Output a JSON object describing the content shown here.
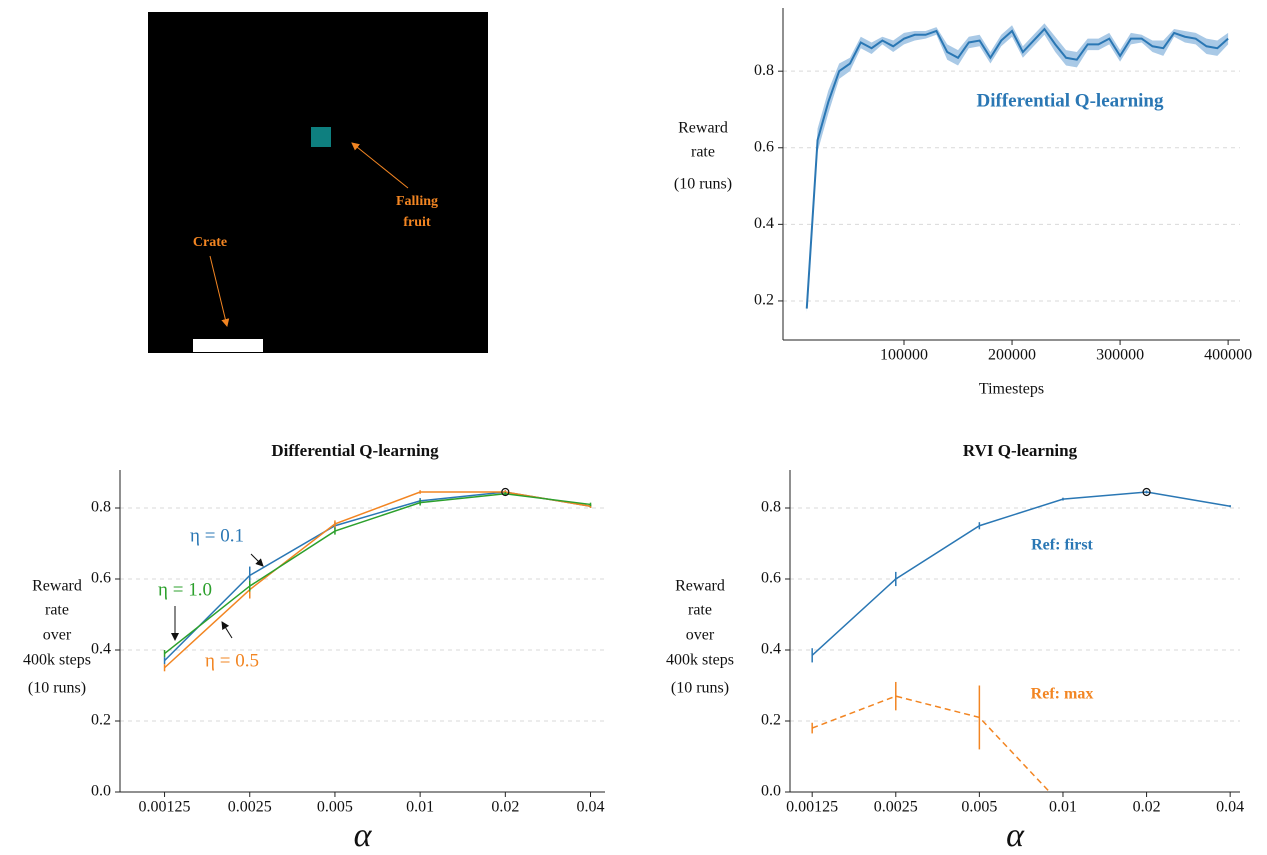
{
  "environment": {
    "fruit_label": [
      "Falling",
      "fruit"
    ],
    "crate_label": "Crate"
  },
  "chart_data": [
    {
      "type": "line",
      "xlabel": "Timesteps",
      "ylabel": [
        "Reward",
        "rate",
        "(10 runs)"
      ],
      "x": [
        10000,
        20000,
        30000,
        40000,
        50000,
        60000,
        70000,
        80000,
        90000,
        100000,
        110000,
        120000,
        130000,
        140000,
        150000,
        160000,
        170000,
        180000,
        190000,
        200000,
        210000,
        220000,
        230000,
        240000,
        250000,
        260000,
        270000,
        280000,
        290000,
        300000,
        310000,
        320000,
        330000,
        340000,
        350000,
        360000,
        370000,
        380000,
        390000,
        400000
      ],
      "series": [
        {
          "name": "Differential Q-learning",
          "color": "#2a77b4",
          "band_color": "#a9c9e6",
          "values": [
            0.18,
            0.62,
            0.72,
            0.8,
            0.82,
            0.875,
            0.86,
            0.88,
            0.865,
            0.885,
            0.895,
            0.895,
            0.905,
            0.85,
            0.835,
            0.875,
            0.88,
            0.835,
            0.88,
            0.905,
            0.85,
            0.88,
            0.91,
            0.87,
            0.835,
            0.83,
            0.87,
            0.87,
            0.885,
            0.84,
            0.885,
            0.885,
            0.865,
            0.86,
            0.9,
            0.89,
            0.885,
            0.865,
            0.86,
            0.885
          ],
          "lower": [
            0.17,
            0.59,
            0.69,
            0.78,
            0.8,
            0.86,
            0.845,
            0.87,
            0.85,
            0.87,
            0.88,
            0.885,
            0.895,
            0.83,
            0.815,
            0.86,
            0.865,
            0.82,
            0.865,
            0.89,
            0.835,
            0.865,
            0.895,
            0.85,
            0.815,
            0.81,
            0.855,
            0.855,
            0.87,
            0.825,
            0.87,
            0.875,
            0.85,
            0.84,
            0.89,
            0.875,
            0.87,
            0.845,
            0.84,
            0.87
          ],
          "upper": [
            0.19,
            0.65,
            0.75,
            0.82,
            0.835,
            0.89,
            0.875,
            0.89,
            0.88,
            0.9,
            0.905,
            0.905,
            0.915,
            0.87,
            0.855,
            0.89,
            0.895,
            0.85,
            0.895,
            0.92,
            0.865,
            0.895,
            0.925,
            0.89,
            0.855,
            0.85,
            0.885,
            0.885,
            0.9,
            0.855,
            0.9,
            0.895,
            0.88,
            0.88,
            0.91,
            0.905,
            0.9,
            0.885,
            0.88,
            0.9
          ]
        }
      ],
      "xlim": [
        -12000,
        411000
      ],
      "ylim": [
        0.098,
        0.965
      ],
      "xticks": [
        100000,
        200000,
        300000,
        400000
      ],
      "yticks": [
        0.2,
        0.4,
        0.6,
        0.8
      ],
      "grid": true
    },
    {
      "type": "line",
      "title": "Differential Q-learning",
      "xlabel": "α",
      "ylabel": [
        "Reward",
        "rate",
        "over",
        "400k steps",
        "(10 runs)"
      ],
      "xscale": "log",
      "x": [
        0.00125,
        0.0025,
        0.005,
        0.01,
        0.02,
        0.04
      ],
      "series": [
        {
          "name": "η = 0.1",
          "color": "#2a77b4",
          "values": [
            0.37,
            0.61,
            0.75,
            0.82,
            0.845,
            0.805
          ],
          "errors": [
            0.01,
            0.025,
            0.01,
            0.008,
            0.005,
            0.005
          ]
        },
        {
          "name": "η = 0.5",
          "color": "#f28522",
          "values": [
            0.35,
            0.57,
            0.755,
            0.845,
            0.845,
            0.805
          ],
          "errors": [
            0.01,
            0.025,
            0.01,
            0.005,
            0.005,
            0.005
          ]
        },
        {
          "name": "η = 1.0",
          "color": "#2ca02c",
          "values": [
            0.39,
            0.58,
            0.735,
            0.815,
            0.84,
            0.81
          ],
          "errors": [
            0.01,
            0.015,
            0.01,
            0.008,
            0.005,
            0.005
          ]
        }
      ],
      "best": {
        "x": 0.02,
        "y": 0.845
      },
      "xlim": [
        0.00087,
        0.045
      ],
      "ylim": [
        0,
        0.907
      ],
      "xticks": [
        0.00125,
        0.0025,
        0.005,
        0.01,
        0.02,
        0.04
      ],
      "yticks": [
        {
          "value": 0,
          "label": "0.0"
        },
        0.2,
        0.4,
        0.6,
        0.8
      ],
      "grid": true
    },
    {
      "type": "line",
      "title": "RVI Q-learning",
      "xlabel": "α",
      "ylabel": [
        "Reward",
        "rate",
        "over",
        "400k steps",
        "(10 runs)"
      ],
      "xscale": "log",
      "x": [
        0.00125,
        0.0025,
        0.005,
        0.01,
        0.02,
        0.04
      ],
      "series": [
        {
          "name": "Ref: first",
          "color": "#2a77b4",
          "values": [
            0.385,
            0.6,
            0.75,
            0.825,
            0.845,
            0.805
          ],
          "errors": [
            0.02,
            0.02,
            0.01,
            0.004,
            0.004,
            0.003
          ]
        },
        {
          "name": "Ref: max",
          "color": "#f28522",
          "dashed": true,
          "values": [
            0.18,
            0.27,
            0.21,
            -0.04,
            null,
            null
          ],
          "errors": [
            0.015,
            0.04,
            0.09,
            null,
            null,
            null
          ]
        }
      ],
      "best": {
        "x": 0.02,
        "y": 0.845
      },
      "xlim": [
        0.00104,
        0.0434
      ],
      "ylim": [
        0,
        0.907
      ],
      "xticks": [
        0.00125,
        0.0025,
        0.005,
        0.01,
        0.02,
        0.04
      ],
      "yticks": [
        {
          "value": 0,
          "label": "0.0"
        },
        0.2,
        0.4,
        0.6,
        0.8
      ],
      "grid": true
    }
  ]
}
